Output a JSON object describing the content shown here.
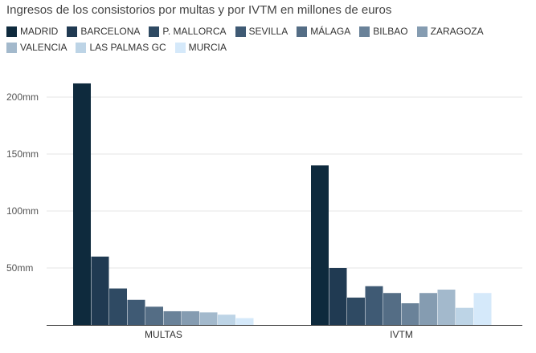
{
  "chart_data": {
    "type": "bar",
    "title": "Ingresos de los consistorios por multas y por IVTM en millones de euros",
    "categories": [
      "MULTAS",
      "IVTM"
    ],
    "legend_position": "top-left",
    "grid": true,
    "ylim": [
      0,
      220
    ],
    "yticks": [
      50,
      100,
      150,
      200
    ],
    "ytick_labels": [
      "50mm",
      "100mm",
      "150mm",
      "200mm"
    ],
    "series": [
      {
        "name": "MADRID",
        "color": "#0e2a3d",
        "values": [
          212,
          140
        ]
      },
      {
        "name": "BARCELONA",
        "color": "#203a52",
        "values": [
          60,
          50
        ]
      },
      {
        "name": "P. MALLORCA",
        "color": "#2f4a63",
        "values": [
          32,
          24
        ]
      },
      {
        "name": "SEVILLA",
        "color": "#3f5a74",
        "values": [
          22,
          34
        ]
      },
      {
        "name": "MÁLAGA",
        "color": "#546d85",
        "values": [
          16,
          28
        ]
      },
      {
        "name": "BILBAO",
        "color": "#6a8299",
        "values": [
          12,
          19
        ]
      },
      {
        "name": "ZARAGOZA",
        "color": "#859cb1",
        "values": [
          12,
          28
        ]
      },
      {
        "name": "VALENCIA",
        "color": "#a3b9cc",
        "values": [
          11,
          31
        ]
      },
      {
        "name": "LAS PALMAS GC",
        "color": "#bdd4e6",
        "values": [
          9,
          15
        ]
      },
      {
        "name": "MURCIA",
        "color": "#d5e9fa",
        "values": [
          6,
          28
        ]
      }
    ]
  }
}
